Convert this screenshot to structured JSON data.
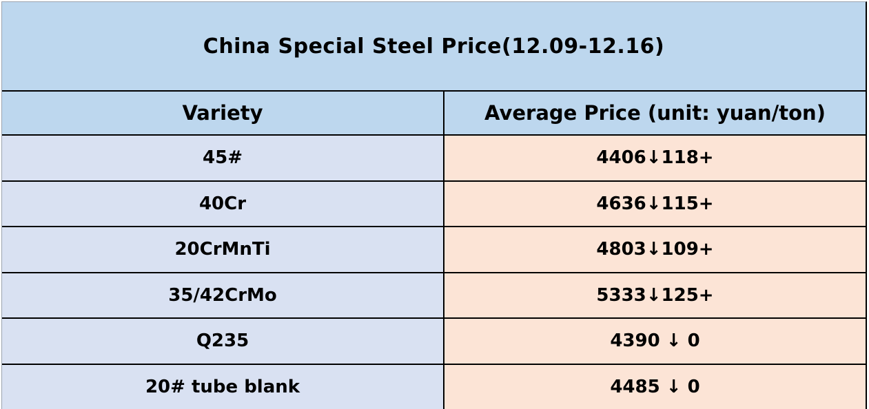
{
  "chart_data": {
    "type": "table",
    "title": "China Special Steel Price(12.09-12.16)",
    "columns": [
      "Variety",
      "Average Price (unit: yuan/ton)"
    ],
    "rows": [
      {
        "variety": "45#",
        "price": "4406↓118+",
        "price_value": 4406,
        "change": -118
      },
      {
        "variety": "40Cr",
        "price": "4636↓115+",
        "price_value": 4636,
        "change": -115
      },
      {
        "variety": "20CrMnTi",
        "price": "4803↓109+",
        "price_value": 4803,
        "change": -109
      },
      {
        "variety": "35/42CrMo",
        "price": "5333↓125+",
        "price_value": 5333,
        "change": -125
      },
      {
        "variety": "Q235",
        "price": "4390 ↓ 0",
        "price_value": 4390,
        "change": 0
      },
      {
        "variety": "20# tube blank",
        "price": "4485 ↓ 0",
        "price_value": 4485,
        "change": 0
      }
    ]
  },
  "colors": {
    "title_bg": "#bdd7ee",
    "header_bg": "#bdd7ee",
    "variety_bg": "#d9e1f2",
    "price_bg": "#fce4d6",
    "border_color": "#000000",
    "grid_line": "#9ba3ad",
    "text_color": "#000000"
  }
}
